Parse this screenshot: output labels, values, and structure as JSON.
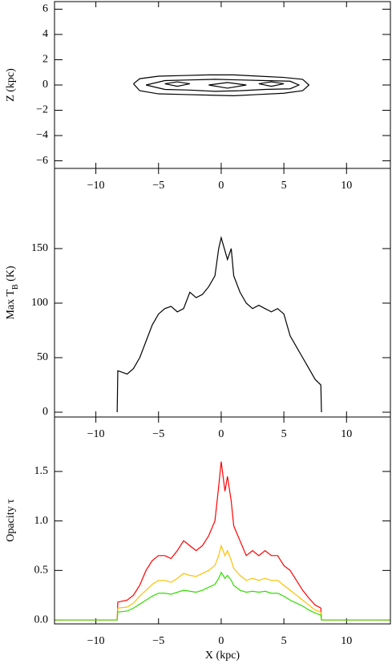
{
  "chart_data": [
    {
      "type": "contour",
      "ylabel": "Z (kpc)",
      "color": "#000000",
      "xlim": [
        -13.3,
        13.5
      ],
      "ylim": [
        -6.6,
        6.6
      ],
      "xticks": [
        {
          "value": -10,
          "label": "−10"
        },
        {
          "value": -5,
          "label": "−5"
        },
        0,
        5,
        10
      ],
      "yticks": [
        {
          "value": -6,
          "label": "−6"
        },
        {
          "value": -4,
          "label": "−4"
        },
        {
          "value": -2,
          "label": "−2"
        },
        0,
        2,
        4,
        6
      ],
      "series": [
        {
          "x": [
            -7.0,
            -6.5,
            -5.0,
            -3.0,
            -1.0,
            1.0,
            3.0,
            5.0,
            6.5,
            7.0,
            6.5,
            5.0,
            3.0,
            1.0,
            -1.0,
            -3.0,
            -5.0,
            -6.5,
            -7.0
          ],
          "y": [
            0.1,
            0.5,
            0.7,
            0.75,
            0.8,
            0.8,
            0.7,
            0.6,
            0.45,
            0.0,
            -0.45,
            -0.65,
            -0.75,
            -0.85,
            -0.8,
            -0.75,
            -0.7,
            -0.45,
            0.1
          ]
        },
        {
          "x": [
            -6.0,
            -4.5,
            -2.5,
            -0.5,
            1.5,
            3.5,
            5.5,
            6.2,
            5.5,
            3.5,
            1.5,
            -0.5,
            -2.5,
            -4.5,
            -6.0
          ],
          "y": [
            0.0,
            0.35,
            0.4,
            0.45,
            0.4,
            0.35,
            0.3,
            0.0,
            -0.3,
            -0.35,
            -0.45,
            -0.5,
            -0.4,
            -0.35,
            0.0
          ]
        },
        {
          "x": [
            -4.5,
            -3.5,
            -2.5,
            -3.5,
            -4.5
          ],
          "y": [
            0.1,
            0.25,
            0.1,
            -0.1,
            0.1
          ]
        },
        {
          "x": [
            -1.0,
            0.5,
            2.0,
            0.5,
            -1.0
          ],
          "y": [
            0.0,
            0.2,
            0.0,
            -0.25,
            0.0
          ]
        },
        {
          "x": [
            3.0,
            4.0,
            5.0,
            4.0,
            3.0
          ],
          "y": [
            0.1,
            0.25,
            0.1,
            -0.1,
            0.1
          ]
        }
      ]
    },
    {
      "type": "line",
      "ylabel": [
        "Max T",
        "B",
        " (K)"
      ],
      "color": "#000000",
      "xlim": [
        -13.3,
        13.5
      ],
      "ylim": [
        -4.4,
        223.5
      ],
      "xticks": [
        {
          "value": -10,
          "label": "−10"
        },
        {
          "value": -5,
          "label": "−5"
        },
        0,
        5,
        10
      ],
      "yticks": [
        0,
        50,
        100,
        150
      ],
      "x": [
        -13.3,
        -8.3,
        -8.25,
        -7.5,
        -7,
        -6.5,
        -6,
        -5.5,
        -5,
        -4.5,
        -4,
        -3.5,
        -3,
        -2.5,
        -2,
        -1.5,
        -1,
        -0.5,
        -0.2,
        0,
        0.3,
        0.5,
        0.8,
        1,
        1.5,
        2,
        2.5,
        3,
        3.5,
        4,
        4.5,
        5,
        5.5,
        6,
        6.5,
        7,
        7.5,
        7.95,
        8.0,
        13.5
      ],
      "series": [
        {
          "color": "#000000",
          "values": [
            null,
            0,
            38,
            35,
            40,
            50,
            65,
            80,
            90,
            95,
            97,
            92,
            95,
            110,
            105,
            108,
            115,
            125,
            150,
            160,
            148,
            140,
            150,
            125,
            110,
            100,
            95,
            98,
            95,
            92,
            95,
            90,
            70,
            60,
            50,
            40,
            30,
            25,
            0,
            null
          ]
        }
      ]
    },
    {
      "type": "line",
      "ylabel": "Opacity τ",
      "xlabel": "X (kpc)",
      "xlim": [
        -13.3,
        13.5
      ],
      "ylim": [
        -0.04,
        2.05
      ],
      "xticks": [
        {
          "value": -10,
          "label": "−10"
        },
        {
          "value": -5,
          "label": "−5"
        },
        0,
        5,
        10
      ],
      "yticks": [
        {
          "value": 0,
          "label": "0.0"
        },
        {
          "value": 0.5,
          "label": "0.5"
        },
        {
          "value": 1,
          "label": "1.0"
        },
        {
          "value": 1.5,
          "label": "1.5"
        }
      ],
      "x": [
        -13.3,
        -8.3,
        -8.25,
        -7.5,
        -7,
        -6.5,
        -6,
        -5.5,
        -5,
        -4.5,
        -4,
        -3.5,
        -3,
        -2.5,
        -2,
        -1.5,
        -1,
        -0.5,
        -0.2,
        0,
        0.3,
        0.5,
        0.8,
        1,
        1.5,
        2,
        2.5,
        3,
        3.5,
        4,
        4.5,
        5,
        5.5,
        6,
        6.5,
        7,
        7.5,
        7.95,
        8.0,
        13.5
      ],
      "series": [
        {
          "color": "#ff0000",
          "values": [
            0,
            0,
            0.18,
            0.2,
            0.25,
            0.35,
            0.5,
            0.6,
            0.65,
            0.65,
            0.62,
            0.7,
            0.8,
            0.75,
            0.7,
            0.75,
            0.85,
            1.0,
            1.35,
            1.6,
            1.3,
            1.45,
            1.2,
            0.95,
            0.8,
            0.65,
            0.7,
            0.65,
            0.7,
            0.65,
            0.65,
            0.55,
            0.5,
            0.4,
            0.3,
            0.22,
            0.15,
            0.12,
            0,
            0
          ]
        },
        {
          "color": "#ffc000",
          "values": [
            0,
            0,
            0.12,
            0.13,
            0.17,
            0.24,
            0.3,
            0.36,
            0.4,
            0.4,
            0.38,
            0.42,
            0.47,
            0.45,
            0.44,
            0.47,
            0.5,
            0.55,
            0.65,
            0.75,
            0.65,
            0.7,
            0.6,
            0.52,
            0.45,
            0.4,
            0.42,
            0.4,
            0.42,
            0.4,
            0.4,
            0.35,
            0.3,
            0.25,
            0.2,
            0.15,
            0.1,
            0.08,
            0,
            0
          ]
        },
        {
          "color": "#33dd00",
          "values": [
            0,
            0,
            0.08,
            0.09,
            0.12,
            0.16,
            0.2,
            0.24,
            0.27,
            0.27,
            0.26,
            0.28,
            0.3,
            0.29,
            0.28,
            0.3,
            0.33,
            0.36,
            0.42,
            0.48,
            0.42,
            0.45,
            0.4,
            0.35,
            0.3,
            0.28,
            0.29,
            0.28,
            0.29,
            0.27,
            0.27,
            0.24,
            0.2,
            0.17,
            0.14,
            0.1,
            0.07,
            0.05,
            0,
            0
          ]
        }
      ]
    }
  ]
}
